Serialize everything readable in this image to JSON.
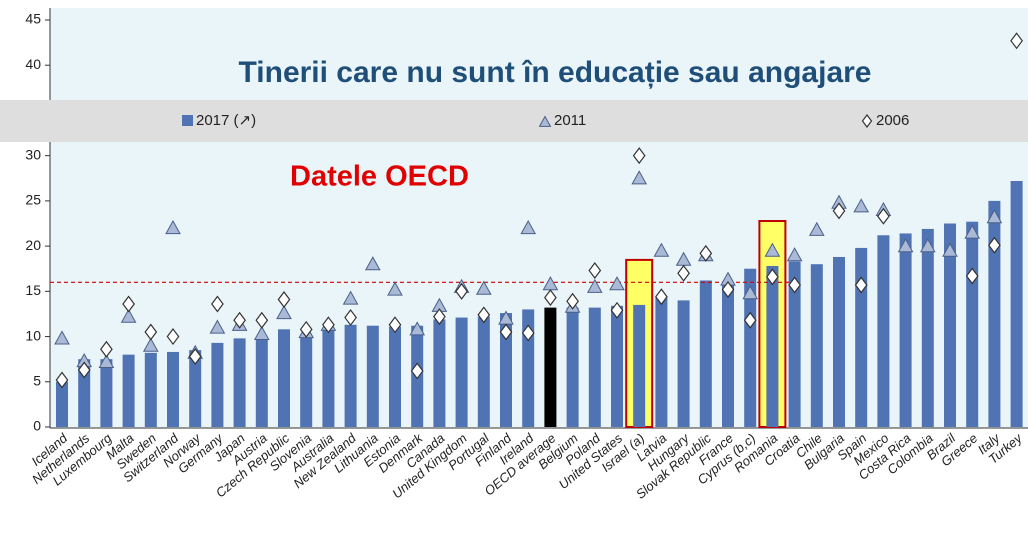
{
  "chart_data": {
    "type": "bar",
    "title": "Tinerii care nu sunt în educație sau angajare",
    "annotation": "Datele OECD",
    "categories": [
      "Iceland",
      "Netherlands",
      "Luxembourg",
      "Malta",
      "Sweden",
      "Switzerland",
      "Norway",
      "Germany",
      "Japan",
      "Austria",
      "Czech Republic",
      "Slovenia",
      "Australia",
      "New Zealand",
      "Lithuania",
      "Estonia",
      "Denmark",
      "Canada",
      "United Kingdom",
      "Portugal",
      "Finland",
      "Ireland",
      "OECD average",
      "Belgium",
      "Poland",
      "United States",
      "Israel (a)",
      "Latvia",
      "Hungary",
      "Slovak Republic",
      "France",
      "Cyprus (b,c)",
      "Romania",
      "Croatia",
      "Chile",
      "Bulgaria",
      "Spain",
      "Mexico",
      "Costa Rica",
      "Colombia",
      "Brazil",
      "Greece",
      "Italy",
      "Turkey"
    ],
    "series": [
      {
        "name": "2017 (↗)",
        "color": "#4f73b3",
        "marker": "bar",
        "values": [
          5.0,
          7.5,
          7.5,
          8.0,
          8.2,
          8.3,
          8.5,
          9.3,
          9.8,
          10.0,
          10.8,
          10.2,
          10.8,
          11.3,
          11.2,
          11.1,
          11.2,
          11.9,
          12.1,
          12.2,
          12.6,
          13.0,
          13.2,
          13.2,
          13.2,
          13.4,
          13.5,
          14.4,
          14.0,
          16.2,
          16.0,
          17.5,
          17.8,
          18.3,
          18.0,
          18.8,
          19.8,
          21.2,
          21.4,
          21.9,
          22.5,
          22.7,
          25.0,
          27.2
        ]
      },
      {
        "name": "2011",
        "color": "#a9b9d6",
        "marker": "triangle",
        "values": [
          9.8,
          7.3,
          7.2,
          12.2,
          9.0,
          22.0,
          8.2,
          11.0,
          11.3,
          10.3,
          12.6,
          10.5,
          11.3,
          14.2,
          18.0,
          15.2,
          10.8,
          13.4,
          15.5,
          15.3,
          12.0,
          22.0,
          15.8,
          13.3,
          15.5,
          15.8,
          27.5,
          19.5,
          18.5,
          19.0,
          16.3,
          14.8,
          19.5,
          19.0,
          21.8,
          24.8,
          24.4,
          24.0,
          20.0,
          20.0,
          19.5,
          21.5,
          23.2,
          null
        ]
      },
      {
        "name": "2006",
        "color": "#ffffff",
        "marker": "diamond",
        "values": [
          5.2,
          6.3,
          8.6,
          13.6,
          10.5,
          10.0,
          7.8,
          13.6,
          11.8,
          11.8,
          14.1,
          10.8,
          11.3,
          12.1,
          null,
          11.3,
          6.2,
          12.2,
          15.0,
          12.4,
          10.5,
          10.4,
          14.3,
          13.9,
          17.3,
          12.9,
          30.0,
          14.4,
          17.0,
          19.2,
          15.2,
          11.8,
          16.6,
          15.7,
          null,
          23.9,
          15.7,
          23.3,
          null,
          null,
          null,
          16.7,
          20.1,
          42.7
        ]
      }
    ],
    "accent_bar": {
      "index": 22,
      "color": "#000000"
    },
    "highlight_indices": [
      26,
      32
    ],
    "highlight_color": "#ffff66",
    "reference_line": 16,
    "ylim": [
      0,
      45
    ],
    "yticks": [
      0,
      5,
      10,
      15,
      20,
      25,
      30,
      35,
      40,
      45
    ]
  }
}
